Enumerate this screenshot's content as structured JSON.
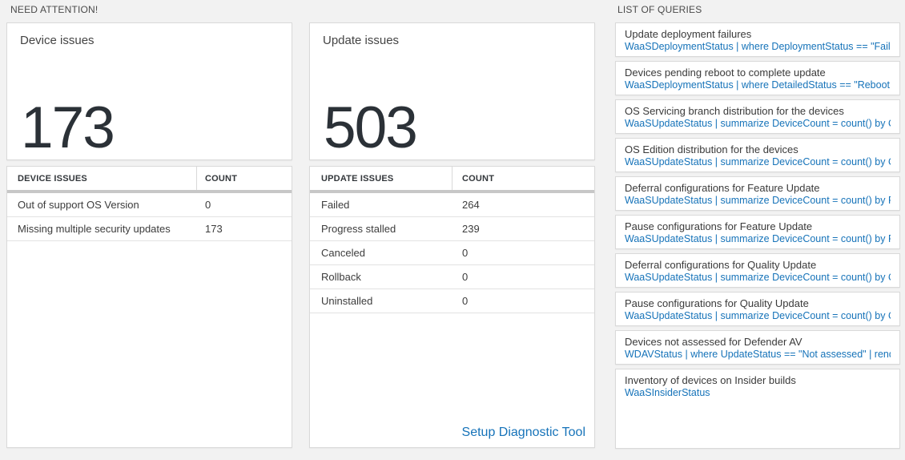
{
  "colors": {
    "page_background": "#f2f2f2",
    "card_background": "#ffffff",
    "card_border": "#d9d9d9",
    "accent_blue": "#1673b9",
    "big_number_color": "#2b3137",
    "thick_separator": "#c7c7c7"
  },
  "need_attention": {
    "header": "NEED ATTENTION!",
    "device_tile": {
      "title": "Device issues",
      "big_number": "173"
    },
    "device_table": {
      "columns": [
        "DEVICE ISSUES",
        "COUNT"
      ],
      "rows": [
        {
          "label": "Out of support OS Version",
          "count": "0"
        },
        {
          "label": "Missing multiple security updates",
          "count": "173"
        }
      ]
    },
    "update_tile": {
      "title": "Update issues",
      "big_number": "503"
    },
    "update_table": {
      "columns": [
        "UPDATE ISSUES",
        "COUNT"
      ],
      "rows": [
        {
          "label": "Failed",
          "count": "264"
        },
        {
          "label": "Progress stalled",
          "count": "239"
        },
        {
          "label": "Canceled",
          "count": "0"
        },
        {
          "label": "Rollback",
          "count": "0"
        },
        {
          "label": "Uninstalled",
          "count": "0"
        }
      ],
      "footer_link": "Setup Diagnostic Tool"
    }
  },
  "query_list": {
    "header": "LIST OF QUERIES",
    "items": [
      {
        "title": "Update deployment failures",
        "query": "WaaSDeploymentStatus | where DeploymentStatus == \"Failed\" |..."
      },
      {
        "title": "Devices pending reboot to complete update",
        "query": "WaaSDeploymentStatus | where DetailedStatus == \"Reboot pend..."
      },
      {
        "title": "OS Servicing branch distribution for the devices",
        "query": "WaaSUpdateStatus | summarize DeviceCount = count() by OSSer..."
      },
      {
        "title": "OS Edition distribution for the devices",
        "query": "WaaSUpdateStatus | summarize DeviceCount = count() by OSEdit..."
      },
      {
        "title": "Deferral configurations for Feature Update",
        "query": "WaaSUpdateStatus | summarize DeviceCount = count() by Featur..."
      },
      {
        "title": "Pause configurations for Feature Update",
        "query": "WaaSUpdateStatus | summarize DeviceCount = count() by Featur..."
      },
      {
        "title": "Deferral configurations for Quality Update",
        "query": "WaaSUpdateStatus | summarize DeviceCount = count() by Qualit..."
      },
      {
        "title": "Pause configurations for Quality Update",
        "query": "WaaSUpdateStatus | summarize DeviceCount = count() by Qualit..."
      },
      {
        "title": "Devices not assessed for Defender AV",
        "query": "WDAVStatus | where UpdateStatus == \"Not assessed\" | render ta..."
      },
      {
        "title": "Inventory of devices on Insider builds",
        "query": "WaaSInsiderStatus"
      }
    ]
  }
}
